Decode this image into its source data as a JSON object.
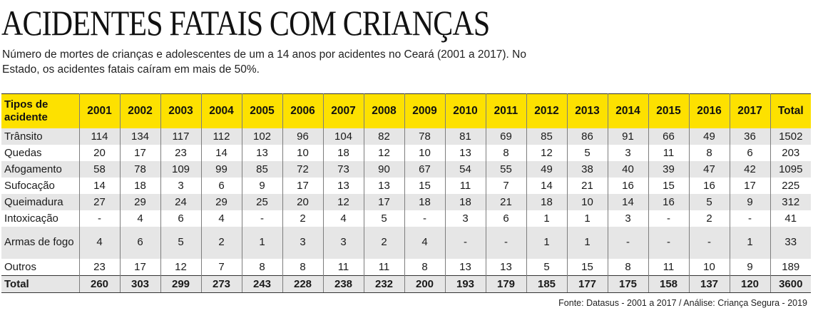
{
  "header": {
    "title": "ACIDENTES FATAIS COM CRIANÇAS",
    "subtitle": "Número de mortes de crianças e adolescentes de um a 14 anos por acidentes no Ceará (2001 a 2017). No Estado, os acidentes fatais caíram em mais de 50%."
  },
  "table": {
    "columns": [
      "Tipos de acidente",
      "2001",
      "2002",
      "2003",
      "2004",
      "2005",
      "2006",
      "2007",
      "2008",
      "2009",
      "2010",
      "2011",
      "2012",
      "2013",
      "2014",
      "2015",
      "2016",
      "2017",
      "Total"
    ],
    "rows": [
      {
        "label": "Trânsito",
        "values": [
          "114",
          "134",
          "117",
          "112",
          "102",
          "96",
          "104",
          "82",
          "78",
          "81",
          "69",
          "85",
          "86",
          "91",
          "66",
          "49",
          "36",
          "1502"
        ]
      },
      {
        "label": "Quedas",
        "values": [
          "20",
          "17",
          "23",
          "14",
          "13",
          "10",
          "18",
          "12",
          "10",
          "13",
          "8",
          "12",
          "5",
          "3",
          "11",
          "8",
          "6",
          "203"
        ]
      },
      {
        "label": "Afogamento",
        "values": [
          "58",
          "78",
          "109",
          "99",
          "85",
          "72",
          "73",
          "90",
          "67",
          "54",
          "55",
          "49",
          "38",
          "40",
          "39",
          "47",
          "42",
          "1095"
        ]
      },
      {
        "label": "Sufocação",
        "values": [
          "14",
          "18",
          "3",
          "6",
          "9",
          "17",
          "13",
          "13",
          "15",
          "11",
          "7",
          "14",
          "21",
          "16",
          "15",
          "16",
          "17",
          "225"
        ]
      },
      {
        "label": "Queimadura",
        "values": [
          "27",
          "29",
          "24",
          "29",
          "25",
          "20",
          "12",
          "17",
          "18",
          "18",
          "21",
          "18",
          "10",
          "14",
          "16",
          "5",
          "9",
          "312"
        ]
      },
      {
        "label": "Intoxicação",
        "values": [
          "-",
          "4",
          "6",
          "4",
          "-",
          "2",
          "4",
          "5",
          "-",
          "3",
          "6",
          "1",
          "1",
          "3",
          "-",
          "2",
          "-",
          "41"
        ]
      },
      {
        "label": "Armas de fogo",
        "values": [
          "4",
          "6",
          "5",
          "2",
          "1",
          "3",
          "3",
          "2",
          "4",
          "-",
          "-",
          "1",
          "1",
          "-",
          "-",
          "-",
          "1",
          "33"
        ]
      },
      {
        "label": "Outros",
        "values": [
          "23",
          "17",
          "12",
          "7",
          "8",
          "8",
          "11",
          "11",
          "8",
          "13",
          "13",
          "5",
          "15",
          "8",
          "11",
          "10",
          "9",
          "189"
        ]
      }
    ],
    "total": {
      "label": "Total",
      "values": [
        "260",
        "303",
        "299",
        "273",
        "243",
        "228",
        "238",
        "232",
        "200",
        "193",
        "179",
        "185",
        "177",
        "175",
        "158",
        "137",
        "120",
        "3600"
      ]
    }
  },
  "footer": {
    "source": "Fonte: Datasus - 2001 a 2017 / Análise: Criança Segura - 2019"
  },
  "colors": {
    "header_bg": "#fde100",
    "stripe_bg": "#e6e6e6"
  }
}
